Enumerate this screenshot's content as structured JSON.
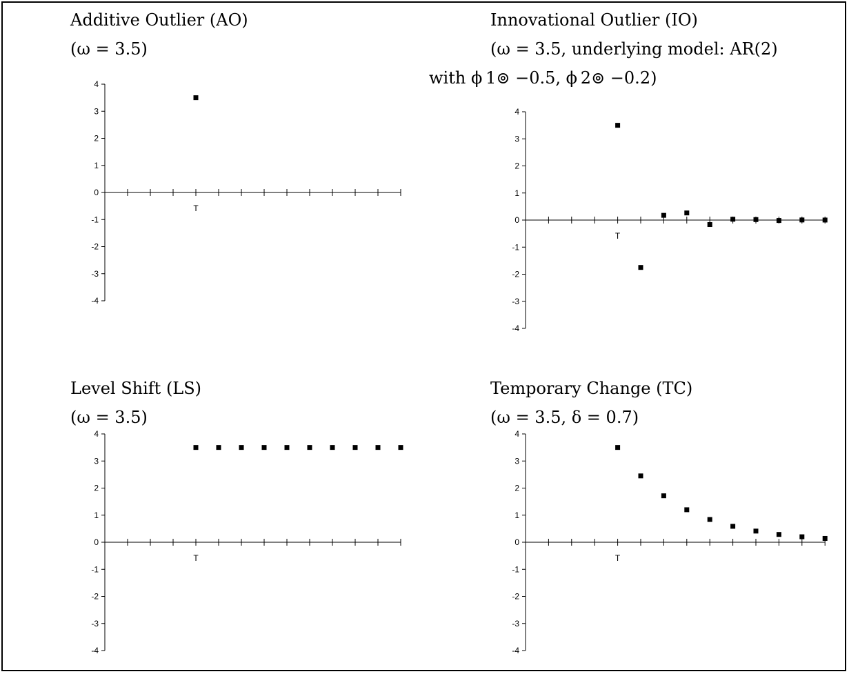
{
  "panels": {
    "ao": {
      "title": "Additive Outlier (AO)",
      "params": "(ω = 3.5)"
    },
    "io": {
      "title": "Innovational Outlier (IO)",
      "params": "(ω = 3.5, underlying model: AR(2)",
      "params2": "with ϕ 1⊚ −0.5, ϕ 2⊚ −0.2)"
    },
    "ls": {
      "title": "Level Shift (LS)",
      "params": "(ω = 3.5)"
    },
    "tc": {
      "title": "Temporary Change (TC)",
      "params": "(ω = 3.5, δ = 0.7)"
    }
  },
  "chart_data": [
    {
      "id": "ao",
      "type": "scatter",
      "x": [
        4
      ],
      "y": [
        3.5
      ],
      "xmax": 13,
      "ylim": [
        -4,
        4
      ],
      "yticks": [
        "4",
        "3",
        "2",
        "1",
        "0",
        "-1",
        "-2",
        "-3",
        "-4"
      ],
      "xtick_label": {
        "x": 4,
        "text": "T"
      },
      "color": "#000000"
    },
    {
      "id": "io",
      "type": "scatter",
      "x": [
        4,
        5,
        6,
        7,
        8,
        9,
        10,
        11,
        12,
        13
      ],
      "y": [
        3.5,
        -1.75,
        0.175,
        0.263,
        -0.166,
        0.031,
        0.018,
        -0.015,
        0.004,
        0.001
      ],
      "xmax": 13,
      "ylim": [
        -4,
        4
      ],
      "yticks": [
        "4",
        "3",
        "2",
        "1",
        "0",
        "-1",
        "-2",
        "-3",
        "-4"
      ],
      "xtick_label": {
        "x": 4,
        "text": "T"
      },
      "color": "#000000"
    },
    {
      "id": "ls",
      "type": "scatter",
      "x": [
        4,
        5,
        6,
        7,
        8,
        9,
        10,
        11,
        12,
        13
      ],
      "y": [
        3.5,
        3.5,
        3.5,
        3.5,
        3.5,
        3.5,
        3.5,
        3.5,
        3.5,
        3.5
      ],
      "xmax": 13,
      "ylim": [
        -4,
        4
      ],
      "yticks": [
        "4",
        "3",
        "2",
        "1",
        "0",
        "-1",
        "-2",
        "-3",
        "-4"
      ],
      "xtick_label": {
        "x": 4,
        "text": "T"
      },
      "color": "#000000"
    },
    {
      "id": "tc",
      "type": "scatter",
      "x": [
        4,
        5,
        6,
        7,
        8,
        9,
        10,
        11,
        12,
        13
      ],
      "y": [
        3.5,
        2.45,
        1.715,
        1.2,
        0.84,
        0.588,
        0.412,
        0.288,
        0.202,
        0.141
      ],
      "xmax": 13,
      "ylim": [
        -4,
        4
      ],
      "yticks": [
        "4",
        "3",
        "2",
        "1",
        "0",
        "-1",
        "-2",
        "-3",
        "-4"
      ],
      "xtick_label": {
        "x": 4,
        "text": "T"
      },
      "color": "#000000"
    }
  ]
}
